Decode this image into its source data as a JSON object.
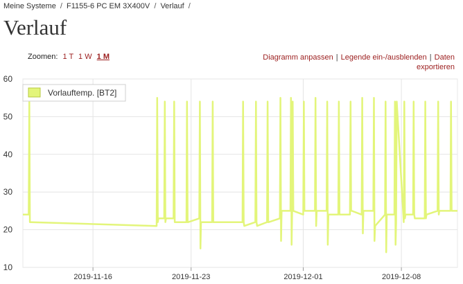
{
  "breadcrumb": {
    "items": [
      "Meine Systeme",
      "F1155-6 PC EM 3X400V",
      "Verlauf"
    ],
    "separator": "/"
  },
  "page": {
    "title": "Verlauf"
  },
  "zoom": {
    "label": "Zoomen:",
    "options": [
      "1 T",
      "1 W",
      "1 M"
    ],
    "active": "1 M"
  },
  "actions": {
    "customize": "Diagramm anpassen",
    "toggle_legend": "Legende ein-/ausblenden",
    "export_line1": "Daten",
    "export_line2": "exportieren",
    "divider": "|"
  },
  "colors": {
    "series": "#e3f57a",
    "link": "#9b1d1d",
    "grid": "#e4e4e4"
  },
  "chart_data": {
    "type": "line",
    "legend": {
      "position": "top-left"
    },
    "grid": true,
    "ylim": [
      10,
      60
    ],
    "yticks": [
      10,
      20,
      30,
      40,
      50,
      60
    ],
    "xlim": [
      "2019-11-11",
      "2019-12-12"
    ],
    "xticks": [
      "2019-11-16",
      "2019-11-23",
      "2019-12-01",
      "2019-12-08"
    ],
    "series": [
      {
        "name": "Vorlauftemp. [BT2]",
        "x": [
          "2019-11-11T00",
          "2019-11-11T10",
          "2019-11-11T11",
          "2019-11-11T12",
          "2019-11-11T13",
          "2019-11-11T14",
          "2019-11-20T12",
          "2019-11-20T13",
          "2019-11-20T14",
          "2019-11-20T15",
          "2019-11-20T16",
          "2019-11-21T02",
          "2019-11-21T03",
          "2019-11-21T04",
          "2019-11-21T05",
          "2019-11-21T18",
          "2019-11-21T19",
          "2019-11-21T20",
          "2019-11-22T16",
          "2019-11-22T17",
          "2019-11-22T18",
          "2019-11-22T19",
          "2019-11-23T14",
          "2019-11-23T15",
          "2019-11-23T16",
          "2019-11-23T17",
          "2019-11-24T12",
          "2019-11-24T13",
          "2019-11-24T14",
          "2019-11-24T15",
          "2019-11-26T16",
          "2019-11-26T17",
          "2019-11-26T18",
          "2019-11-26T19",
          "2019-11-27T14",
          "2019-11-27T15",
          "2019-11-27T16",
          "2019-11-27T17",
          "2019-11-28T10",
          "2019-11-28T11",
          "2019-11-28T12",
          "2019-11-28T13",
          "2019-11-29T08",
          "2019-11-29T09",
          "2019-11-29T10",
          "2019-11-29T11",
          "2019-11-30T02",
          "2019-11-30T03",
          "2019-11-30T04",
          "2019-11-30T05",
          "2019-11-30T06",
          "2019-11-30T07",
          "2019-12-01T00",
          "2019-12-01T01",
          "2019-12-01T02",
          "2019-12-01T03",
          "2019-12-01T20",
          "2019-12-01T21",
          "2019-12-01T22",
          "2019-12-01T23",
          "2019-12-02T16",
          "2019-12-02T17",
          "2019-12-02T18",
          "2019-12-02T19",
          "2019-12-03T12",
          "2019-12-03T13",
          "2019-12-03T14",
          "2019-12-03T15",
          "2019-12-04T08",
          "2019-12-04T09",
          "2019-12-04T10",
          "2019-12-04T11",
          "2019-12-05T04",
          "2019-12-05T05",
          "2019-12-05T06",
          "2019-12-05T07",
          "2019-12-06T00",
          "2019-12-06T01",
          "2019-12-06T02",
          "2019-12-06T03",
          "2019-12-06T20",
          "2019-12-06T21",
          "2019-12-06T22",
          "2019-12-06T23",
          "2019-12-07T12",
          "2019-12-07T13",
          "2019-12-07T14",
          "2019-12-07T15",
          "2019-12-07T16",
          "2019-12-08T04",
          "2019-12-08T05",
          "2019-12-08T06",
          "2019-12-08T07",
          "2019-12-08T20",
          "2019-12-08T21",
          "2019-12-08T22",
          "2019-12-08T23",
          "2019-12-09T16",
          "2019-12-09T17",
          "2019-12-09T18",
          "2019-12-09T19",
          "2019-12-10T14",
          "2019-12-10T15",
          "2019-12-10T16",
          "2019-12-10T17",
          "2019-12-11T12",
          "2019-12-11T13",
          "2019-12-11T14",
          "2019-12-11T15",
          "2019-12-12T00"
        ],
        "y": [
          24,
          24,
          54,
          22,
          22,
          22,
          21,
          21,
          55,
          22,
          23,
          23,
          54,
          22,
          23,
          23,
          54,
          22,
          22,
          54,
          22,
          22,
          23,
          54,
          15,
          22,
          22,
          54,
          22,
          22,
          22,
          54,
          22,
          21,
          22,
          54,
          22,
          21,
          22,
          54,
          22,
          22,
          23,
          55,
          17,
          25,
          25,
          55,
          16,
          25,
          54,
          25,
          24,
          54,
          25,
          25,
          25,
          55,
          21,
          25,
          25,
          54,
          16,
          24,
          24,
          54,
          24,
          24,
          24,
          54,
          25,
          25,
          24,
          55,
          19,
          25,
          25,
          55,
          17,
          21,
          24,
          54,
          14,
          24,
          24,
          54,
          16,
          22,
          54,
          22,
          54,
          23,
          24,
          24,
          54,
          24,
          23,
          23,
          54,
          23,
          24,
          25,
          54,
          24,
          25,
          25,
          54,
          25,
          25,
          25
        ]
      }
    ]
  }
}
